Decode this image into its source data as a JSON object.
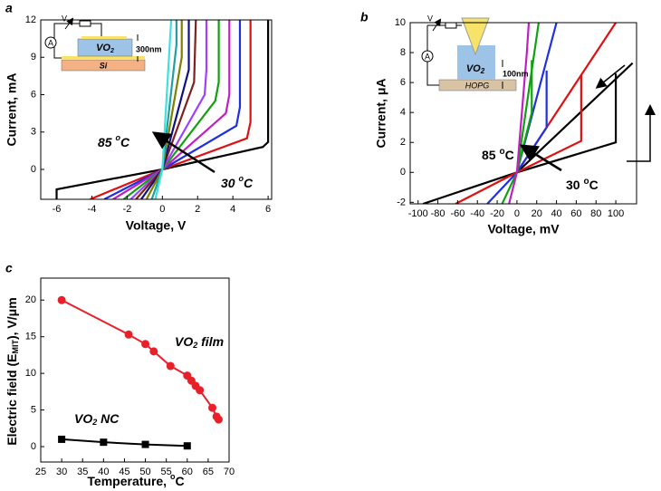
{
  "chart_data": [
    {
      "type": "line",
      "panel": "a",
      "x_label": "Voltage, V",
      "y_label": "Current, mA",
      "xlim": [
        -6.9,
        6.2
      ],
      "ylim": [
        -2.4,
        12
      ],
      "xticks": [
        -6,
        -4,
        -2,
        0,
        2,
        4,
        6
      ],
      "yticks": [
        0,
        3,
        6,
        9,
        12
      ],
      "annotations": [
        [
          "85 ",
          "o",
          "C"
        ],
        [
          "30 ",
          "o",
          "C"
        ]
      ],
      "inset": {
        "source": "V",
        "meter": "A",
        "layer": [
          "VO",
          "2"
        ],
        "thickness": "300nm",
        "substrate": "Si"
      },
      "series": [
        {
          "color": "#000000",
          "x": [
            -6,
            -6,
            0,
            5.7,
            6,
            6
          ],
          "values": [
            -2.4,
            -1.6,
            0,
            1.8,
            2.2,
            12
          ]
        },
        {
          "color": "#e01010",
          "x": [
            -4.1,
            0,
            4.8,
            5,
            5
          ],
          "values": [
            -2.4,
            0,
            2.5,
            3.8,
            12
          ]
        },
        {
          "color": "#2030e0",
          "x": [
            -3.3,
            0,
            4.2,
            4.4,
            4.4
          ],
          "values": [
            -2.4,
            0,
            3.5,
            5,
            12
          ]
        },
        {
          "color": "#c020c0",
          "x": [
            -2.8,
            0,
            3.6,
            3.8,
            3.8
          ],
          "values": [
            -2.4,
            0,
            4.5,
            6,
            12
          ]
        },
        {
          "color": "#10a010",
          "x": [
            -2.2,
            0,
            3,
            3.2,
            3.2
          ],
          "values": [
            -2.4,
            0,
            5.5,
            7,
            12
          ]
        },
        {
          "color": "#a040ff",
          "x": [
            -1.8,
            0,
            2.4,
            2.5,
            2.5
          ],
          "values": [
            -2.4,
            0,
            6,
            8,
            12
          ]
        },
        {
          "color": "#802020",
          "x": [
            -1.5,
            0,
            1.8,
            1.9
          ],
          "values": [
            -2.4,
            0,
            7,
            12
          ]
        },
        {
          "color": "#101080",
          "x": [
            -1.2,
            0,
            1.5,
            1.5
          ],
          "values": [
            -2.4,
            0,
            8,
            12
          ]
        },
        {
          "color": "#808000",
          "x": [
            -0.9,
            0,
            1.1,
            1.1
          ],
          "values": [
            -2.4,
            0,
            9,
            12
          ]
        },
        {
          "color": "#20a0a0",
          "x": [
            -0.6,
            0,
            0.8,
            0.8
          ],
          "values": [
            -2.4,
            0,
            10,
            12
          ]
        },
        {
          "color": "#40e0e0",
          "x": [
            -0.4,
            0,
            0.5
          ],
          "values": [
            -2.4,
            0,
            12
          ]
        }
      ]
    },
    {
      "type": "line",
      "panel": "b",
      "x_label": "Voltage, mV",
      "y_label": "Current, μA",
      "xlim": [
        -108,
        121
      ],
      "ylim": [
        -2.1,
        10
      ],
      "xticks": [
        -100,
        -80,
        -60,
        -40,
        -20,
        0,
        20,
        40,
        60,
        80,
        100
      ],
      "yticks": [
        -2,
        0,
        2,
        4,
        6,
        8,
        10
      ],
      "annotations": [
        [
          "85 ",
          "o",
          "C"
        ],
        [
          "30 ",
          "o",
          "C"
        ]
      ],
      "inset": {
        "source": "V",
        "meter": "A",
        "layer": [
          "VO",
          "2"
        ],
        "thickness": "100nm",
        "substrate": "HOPG"
      },
      "series": [
        {
          "color": "#000000",
          "x": [
            -95,
            0,
            100,
            100
          ],
          "values": [
            -2.1,
            0,
            2,
            6.6
          ]
        },
        {
          "color": "#000000",
          "x": [
            0,
            117
          ],
          "values": [
            0,
            7.3
          ]
        },
        {
          "color": "#e01010",
          "x": [
            -62,
            0,
            65,
            65
          ],
          "values": [
            -2.1,
            0,
            2.1,
            6.5
          ]
        },
        {
          "color": "#e01010",
          "x": [
            0,
            100
          ],
          "values": [
            0,
            10
          ]
        },
        {
          "color": "#2030e0",
          "x": [
            -30,
            0,
            30,
            30
          ],
          "values": [
            -2.1,
            0,
            3,
            6.8
          ]
        },
        {
          "color": "#2030e0",
          "x": [
            0,
            40
          ],
          "values": [
            0,
            10
          ]
        },
        {
          "color": "#10a010",
          "x": [
            -15,
            0,
            15,
            15
          ],
          "values": [
            -2.1,
            0,
            4,
            7.5
          ]
        },
        {
          "color": "#10a010",
          "x": [
            0,
            22
          ],
          "values": [
            0,
            10
          ]
        },
        {
          "color": "#c020c0",
          "x": [
            -8,
            0,
            10,
            12
          ],
          "values": [
            -2.1,
            0,
            8,
            10
          ]
        }
      ]
    },
    {
      "type": "line",
      "panel": "c",
      "x_label": [
        "Temperature, ",
        "o",
        "C"
      ],
      "y_label": [
        "Electric field (E",
        "MIT",
        "), V/μm"
      ],
      "xlim": [
        25,
        70
      ],
      "ylim": [
        -2.1,
        23
      ],
      "xticks": [
        25,
        30,
        35,
        40,
        45,
        50,
        55,
        60,
        65,
        70
      ],
      "yticks": [
        0,
        5,
        10,
        15,
        20
      ],
      "annotations": [
        [
          "VO",
          "2",
          " film"
        ],
        [
          "VO",
          "2",
          " NC"
        ]
      ],
      "series": [
        {
          "color": "#e8202a",
          "marker": "circle",
          "x": [
            30,
            46,
            50,
            52,
            56,
            60,
            61,
            62,
            63,
            66,
            67,
            67.5
          ],
          "values": [
            20,
            15.3,
            14,
            13,
            11,
            9.7,
            9,
            8.3,
            7.7,
            5.3,
            4.1,
            3.7
          ]
        },
        {
          "color": "#000000",
          "marker": "square",
          "x": [
            30,
            40,
            50,
            60
          ],
          "values": [
            1,
            0.6,
            0.3,
            0.1
          ]
        }
      ]
    }
  ]
}
